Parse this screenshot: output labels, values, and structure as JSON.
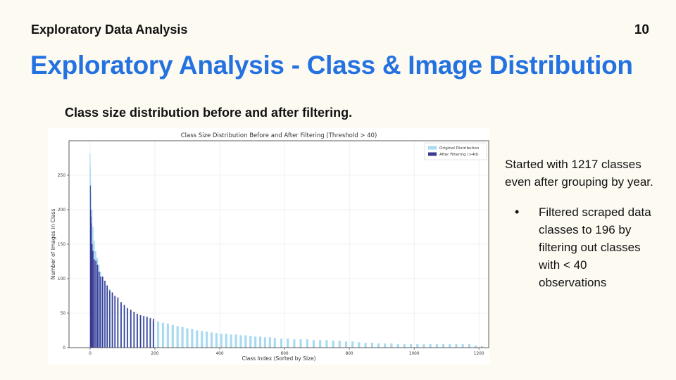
{
  "header": {
    "section": "Exploratory Data Analysis",
    "page_number": "10"
  },
  "title": "Exploratory Analysis - Class & Image Distribution",
  "subtitle": "Class size distribution before and after filtering.",
  "notes": {
    "intro": "Started with 1217 classes even after grouping by year.",
    "bullets": [
      "Filtered scraped data classes to 196 by filtering out classes with < 40 observations"
    ]
  },
  "colors": {
    "accent": "#2372e0",
    "original": "#a9daf0",
    "filtered": "#3d3a96"
  },
  "chart_data": {
    "type": "bar",
    "title": "Class Size Distribution Before and After Filtering (Threshold > 40)",
    "xlabel": "Class Index (Sorted by Size)",
    "ylabel": "Number of Images in Class",
    "xlim": [
      -65,
      1230
    ],
    "ylim": [
      0,
      300
    ],
    "xticks": [
      0,
      200,
      400,
      600,
      800,
      1000,
      1200
    ],
    "yticks": [
      0,
      50,
      100,
      150,
      200,
      250
    ],
    "grid": true,
    "legend_position": "top-right",
    "series": [
      {
        "name": "Original Distribution",
        "x": [
          0,
          1,
          2,
          3,
          5,
          8,
          12,
          17,
          22,
          27,
          32,
          38,
          45,
          52,
          60,
          68,
          76,
          85,
          95,
          105,
          115,
          125,
          135,
          145,
          155,
          165,
          175,
          185,
          195,
          210,
          225,
          240,
          255,
          270,
          285,
          300,
          315,
          330,
          345,
          360,
          375,
          390,
          405,
          420,
          435,
          450,
          465,
          480,
          495,
          510,
          525,
          540,
          555,
          570,
          590,
          610,
          630,
          650,
          670,
          690,
          710,
          730,
          750,
          770,
          790,
          810,
          830,
          850,
          870,
          890,
          910,
          930,
          950,
          970,
          990,
          1010,
          1030,
          1050,
          1070,
          1090,
          1110,
          1130,
          1150,
          1170,
          1190,
          1210
        ],
        "values": [
          282,
          262,
          240,
          222,
          200,
          175,
          155,
          140,
          130,
          120,
          110,
          103,
          97,
          91,
          85,
          80,
          75,
          70,
          66,
          62,
          58,
          55,
          52,
          49,
          47,
          45,
          43,
          41,
          39,
          38,
          36,
          35,
          33,
          31,
          30,
          28,
          27,
          25,
          24,
          23,
          22,
          21,
          20,
          20,
          19,
          19,
          18,
          18,
          17,
          16,
          16,
          15,
          15,
          14,
          13,
          13,
          12,
          12,
          12,
          11,
          11,
          11,
          10,
          10,
          9,
          9,
          8,
          7,
          7,
          6,
          6,
          6,
          5,
          5,
          5,
          5,
          5,
          5,
          5,
          5,
          5,
          5,
          5,
          5,
          3,
          2
        ]
      },
      {
        "name": "After Filtering (>40)",
        "x": [
          0,
          1,
          2,
          3,
          5,
          8,
          12,
          17,
          22,
          27,
          32,
          38,
          45,
          52,
          60,
          68,
          76,
          85,
          95,
          105,
          115,
          125,
          135,
          145,
          155,
          165,
          175,
          185,
          195
        ],
        "values": [
          235,
          200,
          190,
          180,
          150,
          140,
          128,
          126,
          120,
          110,
          103,
          103,
          97,
          90,
          83,
          80,
          75,
          73,
          66,
          62,
          57,
          55,
          52,
          49,
          47,
          46,
          45,
          43,
          42
        ]
      }
    ]
  }
}
